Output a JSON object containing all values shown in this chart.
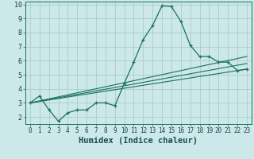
{
  "xlabel": "Humidex (Indice chaleur)",
  "xlim": [
    -0.5,
    23.5
  ],
  "ylim": [
    1.5,
    10.2
  ],
  "xticks": [
    0,
    1,
    2,
    3,
    4,
    5,
    6,
    7,
    8,
    9,
    10,
    11,
    12,
    13,
    14,
    15,
    16,
    17,
    18,
    19,
    20,
    21,
    22,
    23
  ],
  "yticks": [
    2,
    3,
    4,
    5,
    6,
    7,
    8,
    9,
    10
  ],
  "bg_color": "#cce8e8",
  "grid_color": "#aacccc",
  "line_color": "#1a7060",
  "main_curve_x": [
    0,
    1,
    2,
    3,
    4,
    5,
    6,
    7,
    8,
    9,
    10,
    11,
    12,
    13,
    14,
    15,
    16,
    17,
    18,
    19,
    20,
    21,
    22,
    23
  ],
  "main_curve_y": [
    3.0,
    3.5,
    2.5,
    1.7,
    2.3,
    2.5,
    2.5,
    3.0,
    3.0,
    2.8,
    4.4,
    5.9,
    7.5,
    8.5,
    9.9,
    9.85,
    8.8,
    7.1,
    6.3,
    6.3,
    5.9,
    5.9,
    5.3,
    5.4
  ],
  "line1_x": [
    0,
    23
  ],
  "line1_y": [
    3.0,
    5.4
  ],
  "line2_x": [
    0,
    23
  ],
  "line2_y": [
    3.0,
    5.8
  ],
  "line3_x": [
    0,
    23
  ],
  "line3_y": [
    3.0,
    6.3
  ],
  "tick_fontsize": 5.5,
  "xlabel_fontsize": 7.5
}
